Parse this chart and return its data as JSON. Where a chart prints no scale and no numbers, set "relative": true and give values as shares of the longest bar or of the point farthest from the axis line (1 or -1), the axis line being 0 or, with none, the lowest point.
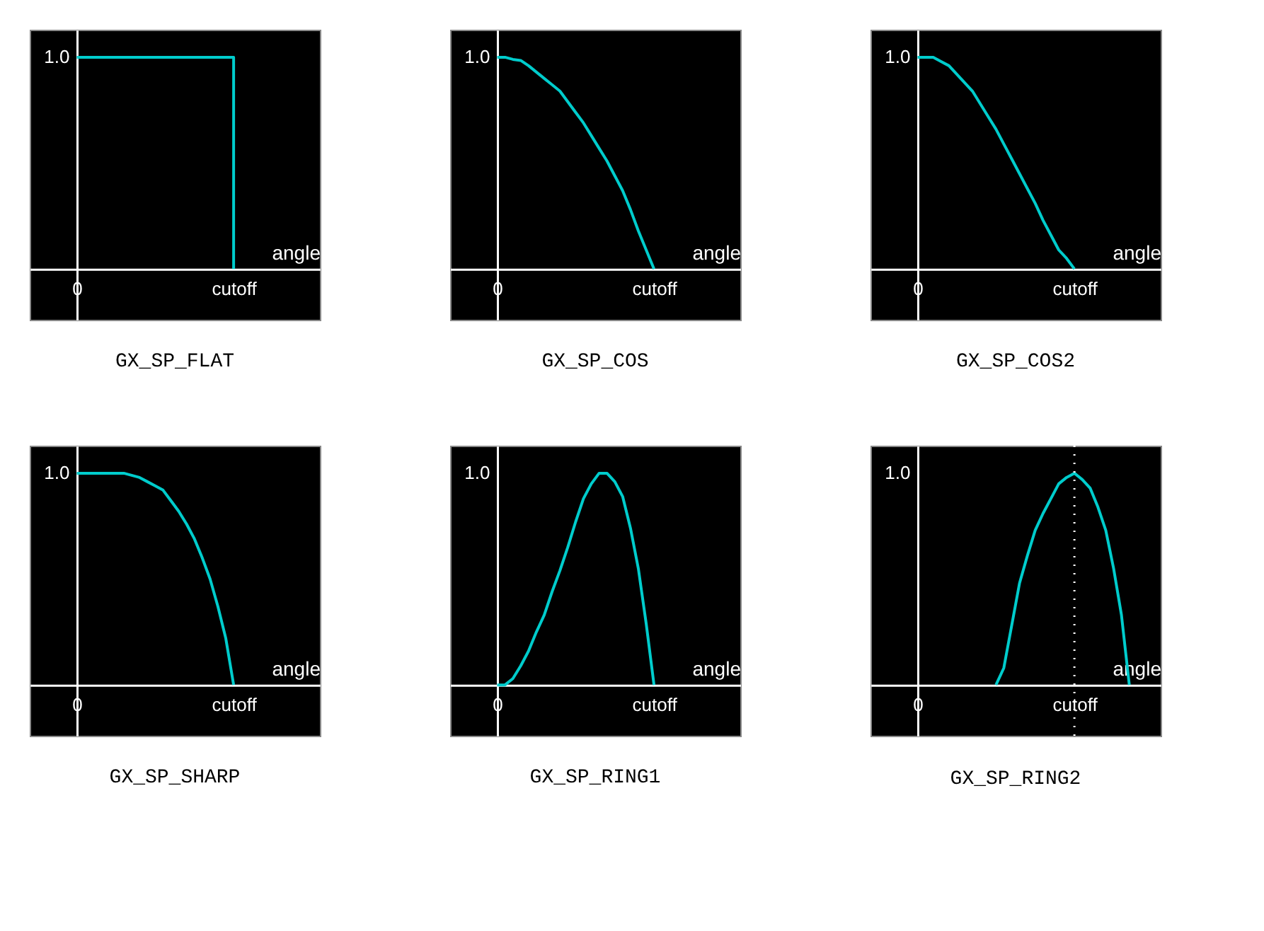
{
  "chart_data": [
    {
      "type": "step",
      "title": "GX_SP_FLAT",
      "xlabel": "angle",
      "relative": true,
      "annotations": [
        "1.0"
      ],
      "categories": [
        null,
        null,
        null,
        null,
        null,
        null,
        "0",
        null,
        null,
        null,
        null,
        null,
        null,
        null,
        null,
        null,
        null,
        null,
        null,
        null,
        null,
        null,
        null,
        null,
        null,
        null,
        "cutoff",
        null,
        null,
        null,
        null,
        null,
        null,
        null,
        null,
        null,
        null,
        null
      ],
      "series": [
        {
          "color": "#00cccc",
          "values": [
            null,
            null,
            null,
            null,
            null,
            null,
            1,
            1,
            1,
            1,
            1,
            1,
            1,
            1,
            1,
            1,
            1,
            1,
            1,
            1,
            1,
            1,
            1,
            1,
            1,
            1,
            0,
            null,
            null,
            null,
            null,
            null,
            null,
            null,
            null,
            null,
            null,
            null
          ]
        }
      ]
    },
    {
      "type": "line",
      "title": "GX_SP_COS",
      "xlabel": "angle",
      "relative": true,
      "annotations": [
        "1.0"
      ],
      "categories": [
        null,
        null,
        null,
        null,
        null,
        null,
        "0",
        null,
        null,
        null,
        null,
        null,
        null,
        null,
        null,
        null,
        null,
        null,
        null,
        null,
        null,
        null,
        null,
        null,
        null,
        null,
        "cutoff",
        null,
        null,
        null,
        null,
        null,
        null,
        null,
        null,
        null,
        null,
        null
      ],
      "series": [
        {
          "color": "#00cccc",
          "values": [
            null,
            null,
            null,
            null,
            null,
            null,
            1,
            1,
            0.99,
            0.985,
            0.96,
            0.93,
            0.9,
            0.87,
            0.84,
            0.79,
            0.74,
            0.69,
            0.63,
            0.57,
            0.51,
            0.44,
            0.37,
            0.28,
            0.18,
            0.09,
            0,
            null,
            null,
            null,
            null,
            null,
            null,
            null,
            null,
            null,
            null,
            null
          ]
        }
      ]
    },
    {
      "type": "line",
      "title": "GX_SP_COS2",
      "xlabel": "angle",
      "relative": true,
      "annotations": [
        "1.0"
      ],
      "categories": [
        null,
        null,
        null,
        null,
        null,
        null,
        "0",
        null,
        null,
        null,
        null,
        null,
        null,
        null,
        null,
        null,
        null,
        null,
        null,
        null,
        null,
        null,
        null,
        null,
        null,
        null,
        "cutoff",
        null,
        null,
        null,
        null,
        null,
        null,
        null,
        null,
        null,
        null,
        null
      ],
      "series": [
        {
          "color": "#00cccc",
          "values": [
            null,
            null,
            null,
            null,
            null,
            null,
            1,
            1,
            1,
            0.98,
            0.96,
            0.92,
            0.88,
            0.84,
            0.78,
            0.72,
            0.66,
            0.59,
            0.52,
            0.45,
            0.38,
            0.31,
            0.23,
            0.16,
            0.09,
            0.05,
            0,
            null,
            null,
            null,
            null,
            null,
            null,
            null,
            null,
            null,
            null,
            null
          ]
        }
      ]
    },
    {
      "type": "line",
      "title": "GX_SP_SHARP",
      "xlabel": "angle",
      "relative": true,
      "annotations": [
        "1.0"
      ],
      "categories": [
        null,
        null,
        null,
        null,
        null,
        null,
        "0",
        null,
        null,
        null,
        null,
        null,
        null,
        null,
        null,
        null,
        null,
        null,
        null,
        null,
        null,
        null,
        null,
        null,
        null,
        null,
        "cutoff",
        null,
        null,
        null,
        null,
        null,
        null,
        null,
        null,
        null,
        null,
        null
      ],
      "series": [
        {
          "color": "#00cccc",
          "values": [
            null,
            null,
            null,
            null,
            null,
            null,
            1,
            1,
            1,
            1,
            1,
            1,
            1,
            0.99,
            0.98,
            0.96,
            0.94,
            0.92,
            0.87,
            0.82,
            0.76,
            0.69,
            0.6,
            0.5,
            0.37,
            0.22,
            0,
            null,
            null,
            null,
            null,
            null,
            null,
            null,
            null,
            null,
            null,
            null
          ]
        }
      ]
    },
    {
      "type": "line",
      "title": "GX_SP_RING1",
      "xlabel": "angle",
      "relative": true,
      "annotations": [
        "1.0"
      ],
      "categories": [
        null,
        null,
        null,
        null,
        null,
        null,
        "0",
        null,
        null,
        null,
        null,
        null,
        null,
        null,
        null,
        null,
        null,
        null,
        null,
        null,
        null,
        null,
        null,
        null,
        null,
        null,
        "cutoff",
        null,
        null,
        null,
        null,
        null,
        null,
        null,
        null,
        null,
        null,
        null
      ],
      "series": [
        {
          "color": "#00cccc",
          "values": [
            null,
            null,
            null,
            null,
            null,
            null,
            0,
            0,
            0.03,
            0.09,
            0.16,
            0.25,
            0.33,
            0.44,
            0.54,
            0.65,
            0.77,
            0.88,
            0.95,
            1,
            1,
            0.96,
            0.89,
            0.74,
            0.55,
            0.29,
            0,
            null,
            null,
            null,
            null,
            null,
            null,
            null,
            null,
            null,
            null,
            null
          ]
        }
      ]
    },
    {
      "type": "line",
      "title": "GX_SP_RING2",
      "xlabel": "angle",
      "relative": true,
      "annotations": [
        "1.0"
      ],
      "categories": [
        null,
        null,
        null,
        null,
        null,
        null,
        "0",
        null,
        null,
        null,
        null,
        null,
        null,
        null,
        null,
        null,
        null,
        null,
        null,
        null,
        null,
        null,
        null,
        null,
        null,
        null,
        "cutoff",
        null,
        null,
        null,
        null,
        null,
        null,
        null,
        null,
        null,
        null,
        null
      ],
      "series": [
        {
          "color": "#00cccc",
          "values": [
            null,
            null,
            null,
            null,
            null,
            null,
            null,
            null,
            null,
            null,
            null,
            null,
            null,
            null,
            null,
            null,
            0,
            0.08,
            0.28,
            0.48,
            0.61,
            0.73,
            0.81,
            0.88,
            0.95,
            0.98,
            1,
            0.97,
            0.93,
            0.84,
            0.73,
            0.55,
            0.33,
            0,
            null,
            null,
            null,
            null
          ]
        }
      ],
      "ref_lines": [
        {
          "axis": "x",
          "value": "cutoff",
          "label": null,
          "color": "#ffffff",
          "line_style": "dotted"
        }
      ]
    }
  ]
}
